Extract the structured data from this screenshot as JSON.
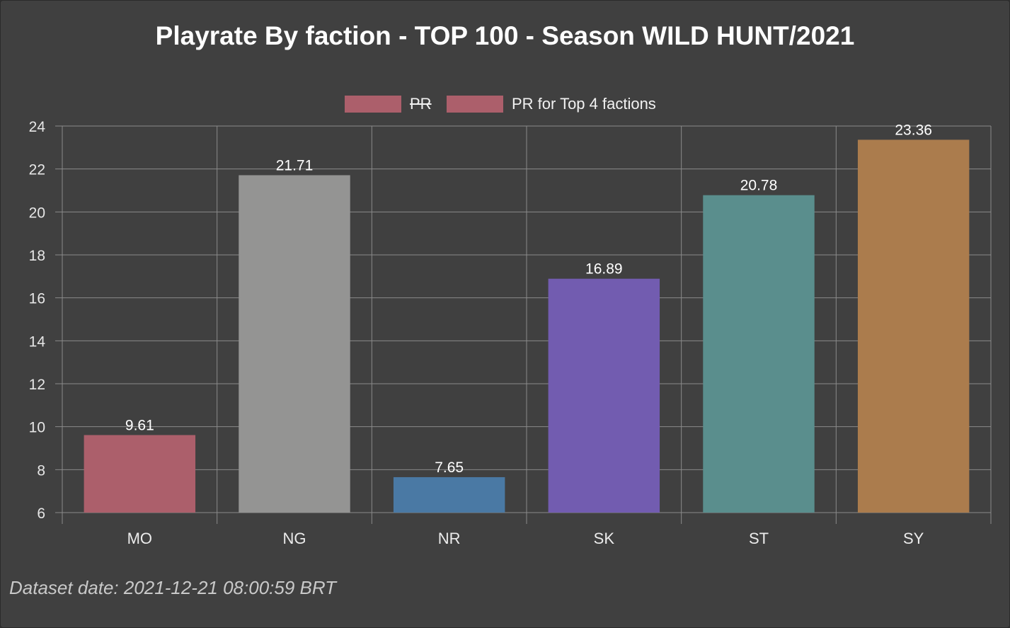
{
  "chart_data": {
    "type": "bar",
    "title": "Playrate By faction - TOP 100 - Season WILD HUNT/2021",
    "categories": [
      "MO",
      "NG",
      "NR",
      "SK",
      "ST",
      "SY"
    ],
    "values": [
      9.61,
      21.71,
      7.65,
      16.89,
      20.78,
      23.36
    ],
    "value_labels": [
      "9.61",
      "21.71",
      "7.65",
      "16.89",
      "20.78",
      "23.36"
    ],
    "colors": [
      "#ac5f6b",
      "#949493",
      "#4a79a4",
      "#725cb0",
      "#5a8e8d",
      "#ab7c4d"
    ],
    "ylim": [
      6,
      24
    ],
    "yticks": [
      6,
      8,
      10,
      12,
      14,
      16,
      18,
      20,
      22,
      24
    ],
    "grid": true,
    "legend": {
      "position": "top",
      "entries": [
        {
          "label": "PR",
          "color": "#ac5f6b",
          "hidden": true
        },
        {
          "label": "PR for Top 4 factions",
          "color": "#ac5f6b",
          "hidden": false
        }
      ]
    }
  },
  "footer": {
    "dataset_date": "Dataset date: 2021-12-21 08:00:59 BRT"
  }
}
